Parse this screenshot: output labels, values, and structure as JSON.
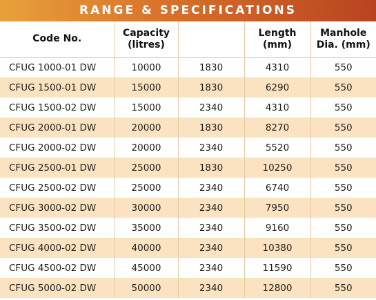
{
  "title": "RANGE & SPECIFICATIONS",
  "colors": {
    "banner_start": "#e8a13a",
    "banner_end": "#b8441f",
    "row_alt": "#fbe3c1"
  },
  "headers": {
    "code": "Code No.",
    "capacity_line1": "Capacity",
    "capacity_line2": "(litres)",
    "diameter": "",
    "length_line1": "Length",
    "length_line2": "(mm)",
    "manhole_line1": "Manhole",
    "manhole_line2": "Dia. (mm)"
  },
  "rows": [
    {
      "code": "CFUG 1000-01 DW",
      "capacity": "10000",
      "diameter": "1830",
      "length": "4310",
      "manhole": "550"
    },
    {
      "code": "CFUG 1500-01 DW",
      "capacity": "15000",
      "diameter": "1830",
      "length": "6290",
      "manhole": "550"
    },
    {
      "code": "CFUG 1500-02 DW",
      "capacity": "15000",
      "diameter": "2340",
      "length": "4310",
      "manhole": "550"
    },
    {
      "code": "CFUG 2000-01 DW",
      "capacity": "20000",
      "diameter": "1830",
      "length": "8270",
      "manhole": "550"
    },
    {
      "code": "CFUG 2000-02 DW",
      "capacity": "20000",
      "diameter": "2340",
      "length": "5520",
      "manhole": "550"
    },
    {
      "code": "CFUG 2500-01 DW",
      "capacity": "25000",
      "diameter": "1830",
      "length": "10250",
      "manhole": "550"
    },
    {
      "code": "CFUG 2500-02 DW",
      "capacity": "25000",
      "diameter": "2340",
      "length": "6740",
      "manhole": "550"
    },
    {
      "code": "CFUG 3000-02 DW",
      "capacity": "30000",
      "diameter": "2340",
      "length": "7950",
      "manhole": "550"
    },
    {
      "code": "CFUG 3500-02 DW",
      "capacity": "35000",
      "diameter": "2340",
      "length": "9160",
      "manhole": "550"
    },
    {
      "code": "CFUG 4000-02 DW",
      "capacity": "40000",
      "diameter": "2340",
      "length": "10380",
      "manhole": "550"
    },
    {
      "code": "CFUG 4500-02 DW",
      "capacity": "45000",
      "diameter": "2340",
      "length": "11590",
      "manhole": "550"
    },
    {
      "code": "CFUG 5000-02 DW",
      "capacity": "50000",
      "diameter": "2340",
      "length": "12800",
      "manhole": "550"
    }
  ]
}
